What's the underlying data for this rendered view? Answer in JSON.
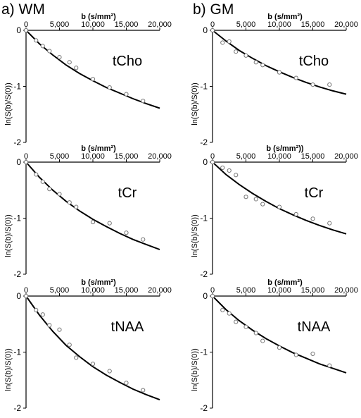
{
  "labels": {
    "col_a": "a) WM",
    "col_b": "b) GM"
  },
  "chart_data": [
    {
      "type": "scatter",
      "panel": "a) WM",
      "metabolite": "tCho",
      "xlabel": "b (s/mm²)",
      "ylabel": "ln(S(b)/S(0))",
      "xlim": [
        0,
        20000
      ],
      "ylim": [
        -2,
        0
      ],
      "xticks": [
        "0",
        "5,000",
        "10,000",
        "15,000",
        "20,000"
      ],
      "yticks": [
        "0",
        "-1",
        "-2"
      ],
      "x": [
        0,
        1500,
        2500,
        3500,
        5000,
        6500,
        7500,
        10000,
        12500,
        15000,
        17500
      ],
      "y": [
        0,
        -0.18,
        -0.28,
        -0.37,
        -0.48,
        -0.57,
        -0.67,
        -0.87,
        -1.02,
        -1.14,
        -1.26
      ],
      "fit": {
        "x": [
          0,
          2000,
          4000,
          6000,
          8000,
          10000,
          12000,
          14000,
          16000,
          18000,
          20000
        ],
        "y": [
          0,
          -0.24,
          -0.44,
          -0.62,
          -0.77,
          -0.9,
          -1.02,
          -1.12,
          -1.22,
          -1.31,
          -1.39
        ]
      }
    },
    {
      "type": "scatter",
      "panel": "b) GM",
      "metabolite": "tCho",
      "xlabel": "b (s/mm²)",
      "ylabel": "ln(S(b)/S(0))",
      "xlim": [
        0,
        20000
      ],
      "ylim": [
        -2,
        0
      ],
      "xticks": [
        "0",
        "5,000",
        "10,000",
        "15,000",
        "20,000"
      ],
      "yticks": [
        "0",
        "-1",
        "-2"
      ],
      "x": [
        0,
        1500,
        2500,
        3500,
        5000,
        6500,
        7500,
        10000,
        12500,
        15000,
        17500
      ],
      "y": [
        0,
        -0.22,
        -0.2,
        -0.38,
        -0.45,
        -0.57,
        -0.62,
        -0.75,
        -0.85,
        -0.97,
        -0.97
      ],
      "fit": {
        "x": [
          0,
          2000,
          4000,
          6000,
          8000,
          10000,
          12000,
          14000,
          16000,
          18000,
          20000
        ],
        "y": [
          0,
          -0.19,
          -0.36,
          -0.5,
          -0.63,
          -0.74,
          -0.84,
          -0.93,
          -1.01,
          -1.08,
          -1.14
        ]
      }
    },
    {
      "type": "scatter",
      "panel": "a) WM",
      "metabolite": "tCr",
      "xlabel": "b (s/mm²)",
      "ylabel": "ln(S(b)/S(0))",
      "xlim": [
        0,
        20000
      ],
      "ylim": [
        -2,
        0
      ],
      "xticks": [
        "0",
        "5,000",
        "10,000",
        "15,000",
        "20,000"
      ],
      "yticks": [
        "0",
        "-1",
        "-2"
      ],
      "x": [
        0,
        1500,
        2500,
        3500,
        5000,
        6500,
        7500,
        10000,
        12500,
        15000,
        17500
      ],
      "y": [
        0,
        -0.22,
        -0.35,
        -0.48,
        -0.57,
        -0.72,
        -0.8,
        -1.07,
        -1.09,
        -1.26,
        -1.38
      ],
      "fit": {
        "x": [
          0,
          2000,
          4000,
          6000,
          8000,
          10000,
          12000,
          14000,
          16000,
          18000,
          20000
        ],
        "y": [
          0,
          -0.27,
          -0.5,
          -0.7,
          -0.87,
          -1.02,
          -1.15,
          -1.27,
          -1.38,
          -1.47,
          -1.56
        ]
      }
    },
    {
      "type": "scatter",
      "panel": "b) GM",
      "metabolite": "tCr",
      "xlabel": "b (s/mm²))",
      "ylabel": "ln(S(b)/S(0))",
      "xlim": [
        0,
        20000
      ],
      "ylim": [
        -2,
        0
      ],
      "xticks": [
        "0",
        "5,000",
        "10,000",
        "15,000",
        "20,000"
      ],
      "yticks": [
        "0",
        "-1",
        "-2"
      ],
      "x": [
        0,
        1500,
        2500,
        3500,
        5000,
        6500,
        7500,
        10000,
        12500,
        15000,
        17500
      ],
      "y": [
        0,
        -0.1,
        -0.15,
        -0.23,
        -0.62,
        -0.66,
        -0.75,
        -0.8,
        -0.93,
        -1.01,
        -1.09
      ],
      "fit": {
        "x": [
          0,
          2000,
          4000,
          6000,
          8000,
          10000,
          12000,
          14000,
          16000,
          18000,
          20000
        ],
        "y": [
          0,
          -0.22,
          -0.4,
          -0.56,
          -0.7,
          -0.83,
          -0.94,
          -1.04,
          -1.13,
          -1.21,
          -1.28
        ]
      }
    },
    {
      "type": "scatter",
      "panel": "a) WM",
      "metabolite": "tNAA",
      "xlabel": "b (s/mm²)",
      "ylabel": "ln(S(b)/S(0))",
      "xlim": [
        0,
        20000
      ],
      "ylim": [
        -2,
        0
      ],
      "xticks": [
        "0",
        "5,000",
        "10,000",
        "15,000",
        "20,000"
      ],
      "yticks": [
        "0",
        "-1",
        "-2"
      ],
      "x": [
        0,
        1500,
        2500,
        3500,
        5000,
        6500,
        7500,
        10000,
        12500,
        15000,
        17500
      ],
      "y": [
        0,
        -0.25,
        -0.33,
        -0.52,
        -0.6,
        -0.87,
        -1.1,
        -1.21,
        -1.34,
        -1.55,
        -1.68
      ],
      "fit": {
        "x": [
          0,
          2000,
          4000,
          6000,
          8000,
          10000,
          12000,
          14000,
          16000,
          18000,
          20000
        ],
        "y": [
          0,
          -0.34,
          -0.63,
          -0.88,
          -1.08,
          -1.26,
          -1.41,
          -1.54,
          -1.66,
          -1.76,
          -1.85
        ]
      }
    },
    {
      "type": "scatter",
      "panel": "b) GM",
      "metabolite": "tNAA",
      "xlabel": "b (s/mm²)",
      "ylabel": "ln(S(b)/S(0))",
      "xlim": [
        0,
        20000
      ],
      "ylim": [
        -2,
        0
      ],
      "xticks": [
        "0",
        "5,000",
        "10,000",
        "15,000",
        "20,000"
      ],
      "yticks": [
        "0",
        "-1",
        "-2"
      ],
      "x": [
        0,
        1500,
        2500,
        3500,
        5000,
        6500,
        7500,
        10000,
        12500,
        15000,
        17500
      ],
      "y": [
        0,
        -0.25,
        -0.31,
        -0.46,
        -0.55,
        -0.66,
        -0.8,
        -0.92,
        -1.05,
        -1.03,
        -1.24
      ],
      "fit": {
        "x": [
          0,
          2000,
          4000,
          6000,
          8000,
          10000,
          12000,
          14000,
          16000,
          18000,
          20000
        ],
        "y": [
          0,
          -0.24,
          -0.44,
          -0.61,
          -0.76,
          -0.89,
          -1.01,
          -1.11,
          -1.21,
          -1.29,
          -1.37
        ]
      }
    }
  ]
}
